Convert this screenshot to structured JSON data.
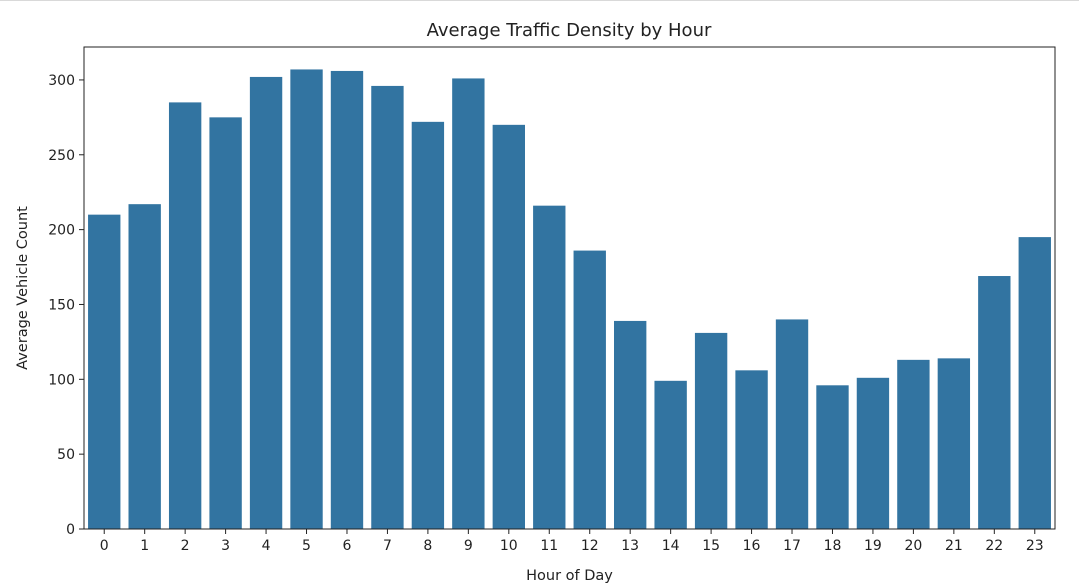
{
  "chart_data": {
    "type": "bar",
    "title": "Average Traffic Density by Hour",
    "xlabel": "Hour of Day",
    "ylabel": "Average Vehicle Count",
    "categories": [
      "0",
      "1",
      "2",
      "3",
      "4",
      "5",
      "6",
      "7",
      "8",
      "9",
      "10",
      "11",
      "12",
      "13",
      "14",
      "15",
      "16",
      "17",
      "18",
      "19",
      "20",
      "21",
      "22",
      "23"
    ],
    "values": [
      210,
      217,
      285,
      275,
      302,
      307,
      306,
      296,
      272,
      301,
      270,
      216,
      186,
      139,
      99,
      131,
      106,
      140,
      96,
      101,
      113,
      114,
      169,
      195
    ],
    "ylim": [
      0,
      322
    ],
    "yticks": [
      0,
      50,
      100,
      150,
      200,
      250,
      300
    ],
    "bar_color": "#3274a1",
    "grid": false,
    "legend": "none"
  }
}
